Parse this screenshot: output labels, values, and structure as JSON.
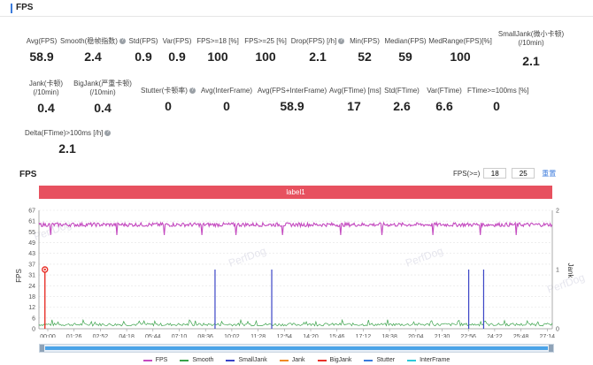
{
  "header": {
    "title": "FPS"
  },
  "metrics_row1": [
    {
      "label": "Avg(FPS)",
      "value": "58.9",
      "help": false
    },
    {
      "label": "Smooth(稳帧指数)",
      "value": "2.4",
      "help": true
    },
    {
      "label": "Std(FPS)",
      "value": "0.9",
      "help": false
    },
    {
      "label": "Var(FPS)",
      "value": "0.9",
      "help": false
    },
    {
      "label": "FPS>=18 [%]",
      "value": "100",
      "help": false
    },
    {
      "label": "FPS>=25 [%]",
      "value": "100",
      "help": false
    },
    {
      "label": "Drop(FPS) [/h]",
      "value": "2.1",
      "help": true
    },
    {
      "label": "Min(FPS)",
      "value": "52",
      "help": false
    },
    {
      "label": "Median(FPS)",
      "value": "59",
      "help": false
    },
    {
      "label": "MedRange(FPS)[%]",
      "value": "100",
      "help": false
    }
  ],
  "metric_smalljank": {
    "label1": "SmallJank(微小卡顿)",
    "label2": "(/10min)",
    "value": "2.1"
  },
  "metrics_row2": [
    {
      "label1": "Jank(卡顿)",
      "label2": "(/10min)",
      "value": "0.4"
    },
    {
      "label1": "BigJank(严重卡顿)",
      "label2": "(/10min)",
      "value": "0.4"
    },
    {
      "label1": "Stutter(卡顿率)",
      "label2": "",
      "value": "0",
      "help": true
    },
    {
      "label1": "Avg(InterFrame)",
      "label2": "",
      "value": "0"
    },
    {
      "label1": "Avg(FPS+InterFrame)",
      "label2": "",
      "value": "58.9"
    },
    {
      "label1": "Avg(FTime) [ms]",
      "label2": "",
      "value": "17"
    },
    {
      "label1": "Std(FTime)",
      "label2": "",
      "value": "2.6"
    },
    {
      "label1": "Var(FTime)",
      "label2": "",
      "value": "6.6"
    },
    {
      "label1": "FTime>=100ms [%]",
      "label2": "",
      "value": "0"
    }
  ],
  "metric_delta": {
    "label": "Delta(FTime)>100ms [/h]",
    "value": "2.1"
  },
  "chart_section": {
    "title": "FPS",
    "fps_threshold_label": "FPS(>=)",
    "threshold_a": "18",
    "threshold_b": "25",
    "reset_label": "重置",
    "label_bar": "label1"
  },
  "chart_data": {
    "type": "line",
    "title": "FPS",
    "ylabel": "FPS",
    "y2label": "Jank",
    "ylim": [
      0,
      67
    ],
    "y2lim": [
      0,
      2
    ],
    "yticks": [
      "67",
      "61",
      "55",
      "49",
      "43",
      "37",
      "31",
      "24",
      "18",
      "12",
      "6",
      "0"
    ],
    "y2ticks": [
      "2",
      "1",
      "0"
    ],
    "xticks": [
      "00:00",
      "01:26",
      "02:52",
      "04:18",
      "05:44",
      "07:10",
      "08:36",
      "10:02",
      "11:28",
      "12:54",
      "14:20",
      "15:46",
      "17:12",
      "18:38",
      "20:04",
      "21:30",
      "22:56",
      "24:22",
      "25:48",
      "27:14"
    ],
    "duration_sec": 1720,
    "fps_mean": 58.9,
    "fps_dips_sec": [
      40,
      260,
      420,
      545,
      660,
      815,
      1010,
      1150,
      1320,
      1480,
      1600
    ],
    "fps_min": 52,
    "bigjank_sec": [
      20
    ],
    "smalljank_sec": [
      590,
      780,
      1440,
      1490
    ],
    "legend": [
      "FPS",
      "Smooth",
      "SmallJank",
      "Jank",
      "BigJank",
      "Stutter",
      "InterFrame"
    ],
    "colors": {
      "FPS": "#c44bc0",
      "Smooth": "#3aa24a",
      "SmallJank": "#3a44c6",
      "Jank": "#f08a24",
      "BigJank": "#e8322a",
      "Stutter": "#3b7bdc",
      "InterFrame": "#2fc9d9"
    }
  },
  "watermark": "PerfDog"
}
